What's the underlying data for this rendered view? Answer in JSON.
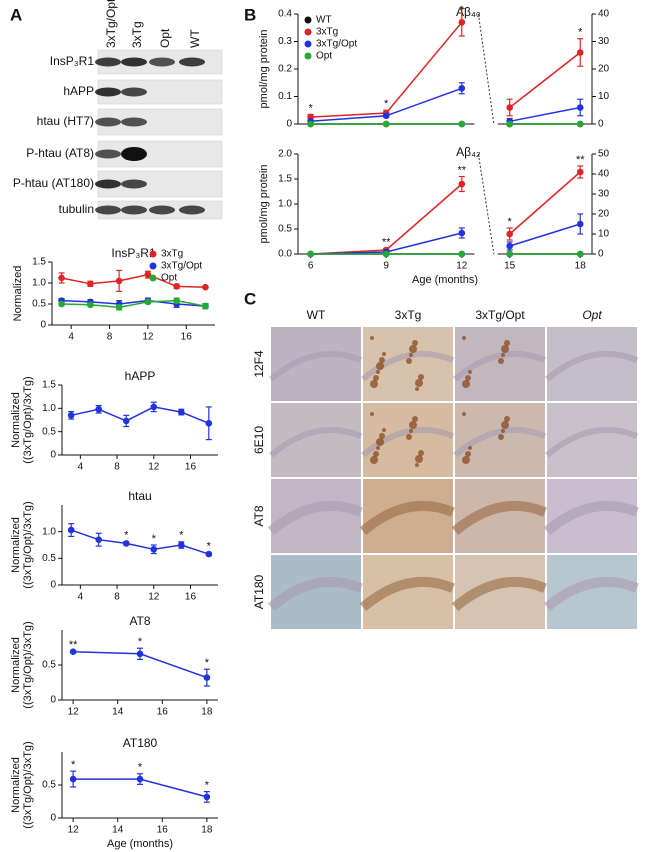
{
  "figure": {
    "panels": [
      "A",
      "B",
      "C"
    ],
    "blot": {
      "columns": [
        "3xTg/Opt",
        "3xTg",
        "Opt",
        "WT"
      ],
      "rows": [
        "InsP₃R1",
        "hAPP",
        "htau (HT7)",
        "P-htau (AT8)",
        "P-htau (AT180)",
        "tubulin"
      ]
    },
    "histology": {
      "columns": [
        "WT",
        "3xTg",
        "3xTg/Opt",
        "Opt"
      ],
      "rows": [
        "12F4",
        "6E10",
        "AT8",
        "AT180"
      ]
    }
  },
  "chart_data": [
    {
      "type": "line",
      "title": "InsP₃R1",
      "ylabel": [
        "Normalized"
      ],
      "x": [
        3,
        6,
        9,
        12,
        15,
        18
      ],
      "xlim": [
        2,
        19
      ],
      "xticks": [
        4,
        8,
        12,
        16
      ],
      "ylim": [
        0,
        1.5
      ],
      "yticks": [
        0,
        0.5,
        {
          "value": 1,
          "label": "1.0"
        },
        1.5
      ],
      "legend": "upper right",
      "series": [
        {
          "name": "3xTg",
          "color": "#e02424",
          "values": [
            1.12,
            0.98,
            1.05,
            1.2,
            0.92,
            0.9
          ],
          "errors": [
            0.12,
            0.06,
            0.25,
            0.08,
            0.05,
            0.02
          ]
        },
        {
          "name": "3xTg/Opt",
          "color": "#2233dd",
          "values": [
            0.58,
            0.55,
            0.5,
            0.58,
            0.5,
            0.45
          ],
          "errors": [
            0.05,
            0.05,
            0.08,
            0.06,
            0.08,
            0.06
          ]
        },
        {
          "name": "Opt",
          "color": "#22aa33",
          "values": [
            0.5,
            0.48,
            0.42,
            0.55,
            0.58,
            0.45
          ],
          "errors": [
            0.04,
            0.04,
            0.06,
            0.04,
            0.06,
            0.06
          ]
        }
      ]
    },
    {
      "type": "line",
      "title": "hAPP",
      "ylabel": [
        "Normalized",
        "((3xTg/Opt)/3xTg)"
      ],
      "x": [
        3,
        6,
        9,
        12,
        15,
        18
      ],
      "xlim": [
        2,
        19
      ],
      "xticks": [
        4,
        8,
        12,
        16
      ],
      "ylim": [
        0,
        1.5
      ],
      "yticks": [
        0,
        0.5,
        {
          "value": 1,
          "label": "1.0"
        },
        1.5
      ],
      "series": [
        {
          "color": "#2233dd",
          "values": [
            0.85,
            0.98,
            0.73,
            1.03,
            0.92,
            0.68
          ],
          "errors": [
            0.08,
            0.08,
            0.12,
            0.1,
            0.06,
            0.35
          ]
        }
      ]
    },
    {
      "type": "line",
      "title": "htau",
      "ylabel": [
        "Normalized",
        "((3xTg/Opt)/3xTg)"
      ],
      "x": [
        3,
        6,
        9,
        12,
        15,
        18
      ],
      "xlim": [
        2,
        19
      ],
      "xticks": [
        4,
        8,
        12,
        16
      ],
      "ylim": [
        0,
        1.5
      ],
      "yticks": [
        0,
        0.5,
        {
          "value": 1,
          "label": "1.0"
        }
      ],
      "series": [
        {
          "color": "#2233dd",
          "values": [
            1.03,
            0.85,
            0.78,
            0.67,
            0.75,
            0.58
          ],
          "errors": [
            0.12,
            0.12,
            0.03,
            0.08,
            0.06,
            0.03
          ],
          "significance": [
            null,
            null,
            "*",
            "*",
            "*",
            "*"
          ]
        }
      ]
    },
    {
      "type": "line",
      "title": "AT8",
      "ylabel": [
        "Normalized",
        "((3xTg/Opt)/3xTg)"
      ],
      "x": [
        12,
        15,
        18
      ],
      "xlim": [
        11.5,
        18.5
      ],
      "xticks": [
        12,
        14,
        16,
        18
      ],
      "ylim": [
        0,
        1.0
      ],
      "yticks": [
        0,
        0.5
      ],
      "series": [
        {
          "color": "#2233dd",
          "values": [
            0.69,
            0.66,
            0.32
          ],
          "errors": [
            0.01,
            0.08,
            0.12
          ],
          "significance": [
            "**",
            "*",
            "*"
          ]
        }
      ]
    },
    {
      "type": "line",
      "title": "AT180",
      "ylabel": [
        "Normalized",
        "((3xTg/Opt)/3xTg)"
      ],
      "xlabel": "Age (months)",
      "x": [
        12,
        15,
        18
      ],
      "xlim": [
        11.5,
        18.5
      ],
      "xticks": [
        12,
        14,
        16,
        18
      ],
      "ylim": [
        0,
        1.0
      ],
      "yticks": [
        0,
        0.5
      ],
      "series": [
        {
          "color": "#2233dd",
          "values": [
            0.59,
            0.59,
            0.32
          ],
          "errors": [
            0.12,
            0.08,
            0.08
          ],
          "significance": [
            "*",
            "*",
            "*"
          ]
        }
      ]
    },
    {
      "type": "line",
      "title": "Aβ₄₀",
      "ylabel": [
        "pmol/mg protein"
      ],
      "x": [
        6,
        9,
        12,
        15,
        18
      ],
      "xlim": [
        5.5,
        18.5
      ],
      "ylim": [
        0,
        0.4
      ],
      "yticks": [
        0,
        0.1,
        0.2,
        0.3,
        0.4
      ],
      "y2lim": [
        0,
        40
      ],
      "y2ticks": [
        0,
        10,
        20,
        30,
        40
      ],
      "legend": "upper left",
      "series": [
        {
          "name": "WT",
          "color": "#111111",
          "values": [
            0,
            0,
            0,
            null,
            null
          ]
        },
        {
          "name": "3xTg",
          "color": "#e02424",
          "values": [
            0.025,
            0.04,
            0.37,
            null,
            null
          ],
          "errors": [
            0.01,
            0.01,
            0.05,
            null,
            null
          ],
          "significance": [
            "*",
            "*",
            "*",
            null,
            null
          ]
        },
        {
          "name": "3xTg/Opt",
          "color": "#2233dd",
          "values": [
            0.01,
            0.03,
            0.13,
            null,
            null
          ],
          "errors": [
            0.005,
            0.005,
            0.02,
            null,
            null
          ]
        },
        {
          "name": "Opt",
          "color": "#22aa33",
          "values": [
            0,
            0,
            0,
            null,
            null
          ]
        },
        {
          "color": "#111111",
          "axis": "y2",
          "values": [
            null,
            null,
            null,
            0,
            0
          ]
        },
        {
          "color": "#e02424",
          "axis": "y2",
          "values": [
            null,
            null,
            null,
            6,
            26
          ],
          "errors": [
            null,
            null,
            null,
            3,
            5
          ],
          "significance": [
            null,
            null,
            null,
            null,
            "*"
          ]
        },
        {
          "color": "#2233dd",
          "axis": "y2",
          "values": [
            null,
            null,
            null,
            1,
            6
          ],
          "errors": [
            null,
            null,
            null,
            1,
            3
          ]
        },
        {
          "color": "#22aa33",
          "axis": "y2",
          "values": [
            null,
            null,
            null,
            0,
            0
          ]
        }
      ]
    },
    {
      "type": "line",
      "title": "Aβ₄₂",
      "ylabel": [
        "pmol/mg protein"
      ],
      "xlabel": "Age (months)",
      "x": [
        6,
        9,
        12,
        15,
        18
      ],
      "xlim": [
        5.5,
        18.5
      ],
      "xticks": [
        6,
        9,
        12,
        15,
        18
      ],
      "ylim": [
        0,
        2
      ],
      "yticks": [
        {
          "value": 0,
          "label": "0.0"
        },
        0.5,
        {
          "value": 1,
          "label": "1.0"
        },
        1.5,
        {
          "value": 2,
          "label": "2.0"
        }
      ],
      "y2lim": [
        0,
        50
      ],
      "y2ticks": [
        0,
        10,
        20,
        30,
        40,
        50
      ],
      "series": [
        {
          "color": "#111111",
          "values": [
            0,
            0,
            0,
            null,
            null
          ]
        },
        {
          "color": "#e02424",
          "values": [
            0,
            0.08,
            1.4,
            null,
            null
          ],
          "errors": [
            0,
            0.03,
            0.15,
            null,
            null
          ],
          "significance": [
            null,
            "**",
            "**",
            null,
            null
          ]
        },
        {
          "color": "#2233dd",
          "values": [
            0,
            0.04,
            0.42,
            null,
            null
          ],
          "errors": [
            0,
            0.02,
            0.1,
            null,
            null
          ]
        },
        {
          "color": "#22aa33",
          "values": [
            0,
            0,
            0,
            null,
            null
          ]
        },
        {
          "color": "#111111",
          "axis": "y2",
          "values": [
            null,
            null,
            null,
            0,
            0
          ]
        },
        {
          "color": "#e02424",
          "axis": "y2",
          "values": [
            null,
            null,
            null,
            10,
            41
          ],
          "errors": [
            null,
            null,
            null,
            3,
            3
          ],
          "significance": [
            null,
            null,
            null,
            "*",
            "**"
          ]
        },
        {
          "color": "#2233dd",
          "axis": "y2",
          "values": [
            null,
            null,
            null,
            4,
            15
          ],
          "errors": [
            null,
            null,
            null,
            2,
            5
          ]
        },
        {
          "color": "#22aa33",
          "axis": "y2",
          "values": [
            null,
            null,
            null,
            0,
            0
          ]
        }
      ]
    }
  ]
}
